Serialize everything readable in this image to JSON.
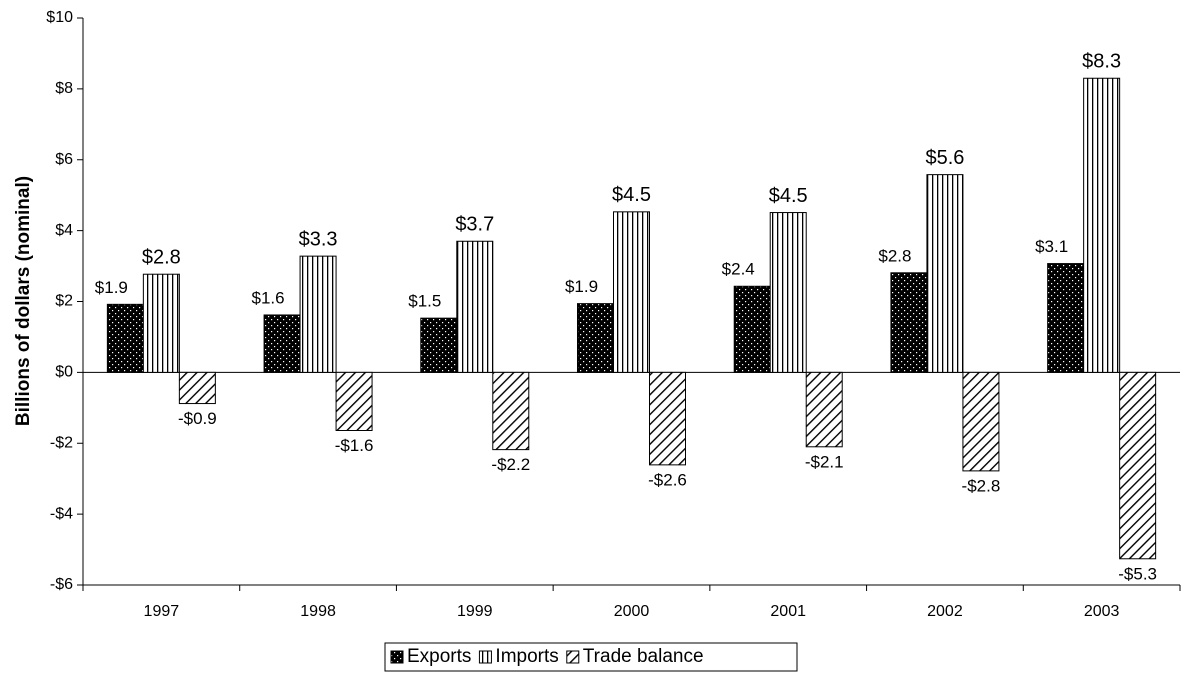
{
  "chart_data": {
    "type": "bar",
    "y_label": "Billions of dollars (nominal)",
    "categories": [
      "1997",
      "1998",
      "1999",
      "2000",
      "2001",
      "2002",
      "2003"
    ],
    "series": [
      {
        "name": "Exports",
        "color": "#000000",
        "pattern": "dots",
        "values": [
          1.92,
          1.62,
          1.53,
          1.94,
          2.43,
          2.81,
          3.07
        ],
        "value_labels": [
          "$1.9",
          "$1.6",
          "$1.5",
          "$1.9",
          "$2.4",
          "$2.8",
          "$3.1"
        ]
      },
      {
        "name": "Imports",
        "color": "#000000",
        "pattern": "vertical",
        "values": [
          2.77,
          3.28,
          3.7,
          4.53,
          4.51,
          5.58,
          8.3
        ],
        "value_labels": [
          "$2.8",
          "$3.3",
          "$3.7",
          "$4.5",
          "$4.5",
          "$5.6",
          "$8.3"
        ]
      },
      {
        "name": "Trade balance",
        "color": "#000000",
        "pattern": "diagonal",
        "values": [
          -0.88,
          -1.64,
          -2.18,
          -2.61,
          -2.1,
          -2.78,
          -5.26
        ],
        "value_labels": [
          "-$0.9",
          "-$1.6",
          "-$2.2",
          "-$2.6",
          "-$2.1",
          "-$2.8",
          "-$5.3"
        ]
      }
    ],
    "ylim": [
      -6,
      10
    ],
    "yticks": [
      {
        "value": -6,
        "label": "-$6"
      },
      {
        "value": -4,
        "label": "-$4"
      },
      {
        "value": -2,
        "label": "-$2"
      },
      {
        "value": 0,
        "label": "$0"
      },
      {
        "value": 2,
        "label": "$2"
      },
      {
        "value": 4,
        "label": "$4"
      },
      {
        "value": 6,
        "label": "$6"
      },
      {
        "value": 8,
        "label": "$8"
      },
      {
        "value": 10,
        "label": "$10"
      }
    ],
    "grid": false,
    "legend": "bottom"
  }
}
